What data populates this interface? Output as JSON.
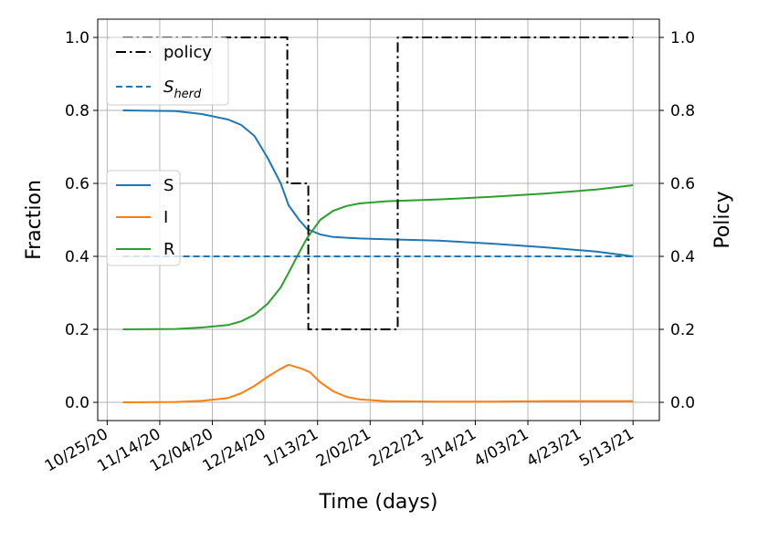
{
  "chart_data": {
    "type": "line",
    "xlabel": "Time (days)",
    "ylabel": "Fraction",
    "y2label": "Policy",
    "x_ticks": [
      "10/25/20",
      "11/14/20",
      "12/04/20",
      "12/24/20",
      "1/13/21",
      "2/02/21",
      "2/22/21",
      "3/14/21",
      "4/03/21",
      "4/23/21",
      "5/13/21"
    ],
    "y_ticks": [
      "0.0",
      "0.2",
      "0.4",
      "0.6",
      "0.8",
      "1.0"
    ],
    "y2_ticks": [
      "0.0",
      "0.2",
      "0.4",
      "0.6",
      "0.8",
      "1.0"
    ],
    "x_range_days": [
      -9.6,
      204
    ],
    "ylim": [
      -0.05,
      1.05
    ],
    "y2lim": [
      -0.05,
      1.05
    ],
    "grid": true,
    "x_start_date": "10/31/20",
    "series": [
      {
        "name": "S",
        "color": "#1f77b4",
        "style": "solid",
        "axis": "left",
        "points": [
          [
            0,
            0.8
          ],
          [
            20,
            0.798
          ],
          [
            30,
            0.79
          ],
          [
            40,
            0.775
          ],
          [
            45,
            0.76
          ],
          [
            50,
            0.73
          ],
          [
            55,
            0.67
          ],
          [
            60,
            0.6
          ],
          [
            63,
            0.54
          ],
          [
            67,
            0.5
          ],
          [
            70,
            0.475
          ],
          [
            75,
            0.46
          ],
          [
            80,
            0.453
          ],
          [
            90,
            0.449
          ],
          [
            100,
            0.447
          ],
          [
            120,
            0.443
          ],
          [
            140,
            0.435
          ],
          [
            160,
            0.425
          ],
          [
            180,
            0.413
          ],
          [
            194,
            0.4
          ]
        ]
      },
      {
        "name": "I",
        "color": "#ff7f0e",
        "style": "solid",
        "axis": "left",
        "points": [
          [
            0,
            0.0
          ],
          [
            20,
            0.001
          ],
          [
            30,
            0.004
          ],
          [
            40,
            0.012
          ],
          [
            45,
            0.025
          ],
          [
            50,
            0.045
          ],
          [
            55,
            0.07
          ],
          [
            60,
            0.092
          ],
          [
            63,
            0.103
          ],
          [
            68,
            0.092
          ],
          [
            71,
            0.083
          ],
          [
            75,
            0.055
          ],
          [
            80,
            0.03
          ],
          [
            85,
            0.015
          ],
          [
            90,
            0.008
          ],
          [
            100,
            0.003
          ],
          [
            120,
            0.002
          ],
          [
            140,
            0.002
          ],
          [
            160,
            0.003
          ],
          [
            180,
            0.003
          ],
          [
            194,
            0.003
          ]
        ]
      },
      {
        "name": "R",
        "color": "#2ca02c",
        "style": "solid",
        "axis": "left",
        "points": [
          [
            0,
            0.2
          ],
          [
            20,
            0.201
          ],
          [
            30,
            0.205
          ],
          [
            40,
            0.212
          ],
          [
            45,
            0.222
          ],
          [
            50,
            0.24
          ],
          [
            55,
            0.27
          ],
          [
            60,
            0.315
          ],
          [
            63,
            0.355
          ],
          [
            67,
            0.41
          ],
          [
            70,
            0.45
          ],
          [
            75,
            0.5
          ],
          [
            80,
            0.525
          ],
          [
            85,
            0.538
          ],
          [
            90,
            0.545
          ],
          [
            100,
            0.551
          ],
          [
            120,
            0.556
          ],
          [
            140,
            0.563
          ],
          [
            160,
            0.572
          ],
          [
            180,
            0.583
          ],
          [
            194,
            0.595
          ]
        ]
      },
      {
        "name": "S_herd",
        "color": "#1f77b4",
        "style": "dashed",
        "axis": "left",
        "points": [
          [
            0,
            0.4
          ],
          [
            194,
            0.4
          ]
        ]
      },
      {
        "name": "policy",
        "color": "#000000",
        "style": "dashdot",
        "axis": "right",
        "points": [
          [
            0,
            1.0
          ],
          [
            62.5,
            1.0
          ],
          [
            62.5,
            0.6
          ],
          [
            70.5,
            0.6
          ],
          [
            70.5,
            0.2
          ],
          [
            104.5,
            0.2
          ],
          [
            104.5,
            1.0
          ],
          [
            194,
            1.0
          ]
        ]
      }
    ],
    "legend_upper": [
      {
        "label": "policy",
        "series": "policy"
      },
      {
        "label": "S",
        "sub": "herd",
        "series": "S_herd"
      }
    ],
    "legend_lower": [
      {
        "label": "S",
        "series": "S"
      },
      {
        "label": "I",
        "series": "I"
      },
      {
        "label": "R",
        "series": "R"
      }
    ]
  }
}
